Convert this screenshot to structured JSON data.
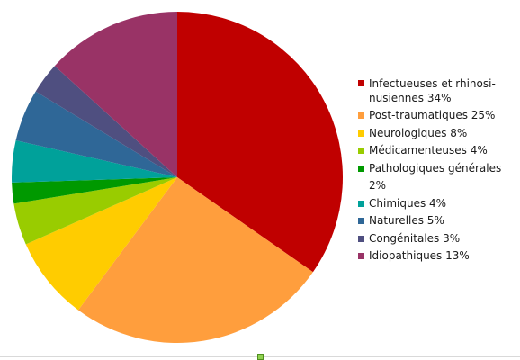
{
  "chart_data": {
    "type": "pie",
    "title": "",
    "legend_position": "right",
    "slices": [
      {
        "label": "Infectueuses et rhinosi-nusiennes 34%",
        "value": 34,
        "color": "#c00000"
      },
      {
        "label": "Post-traumatiques 25%",
        "value": 25,
        "color": "#ff9e3d"
      },
      {
        "label": "Neurologiques 8%",
        "value": 8,
        "color": "#ffcc00"
      },
      {
        "label": "Médicamenteuses 4%",
        "value": 4,
        "color": "#99cc00"
      },
      {
        "label": "Pathologiques générales 2%",
        "value": 2,
        "color": "#009900"
      },
      {
        "label": "Chimiques 4%",
        "value": 4,
        "color": "#00a19a"
      },
      {
        "label": "Naturelles 5%",
        "value": 5,
        "color": "#2f6797"
      },
      {
        "label": "Congénitales 3%",
        "value": 3,
        "color": "#4f4f80"
      },
      {
        "label": "Idiopathiques 13%",
        "value": 13,
        "color": "#993366"
      }
    ]
  }
}
